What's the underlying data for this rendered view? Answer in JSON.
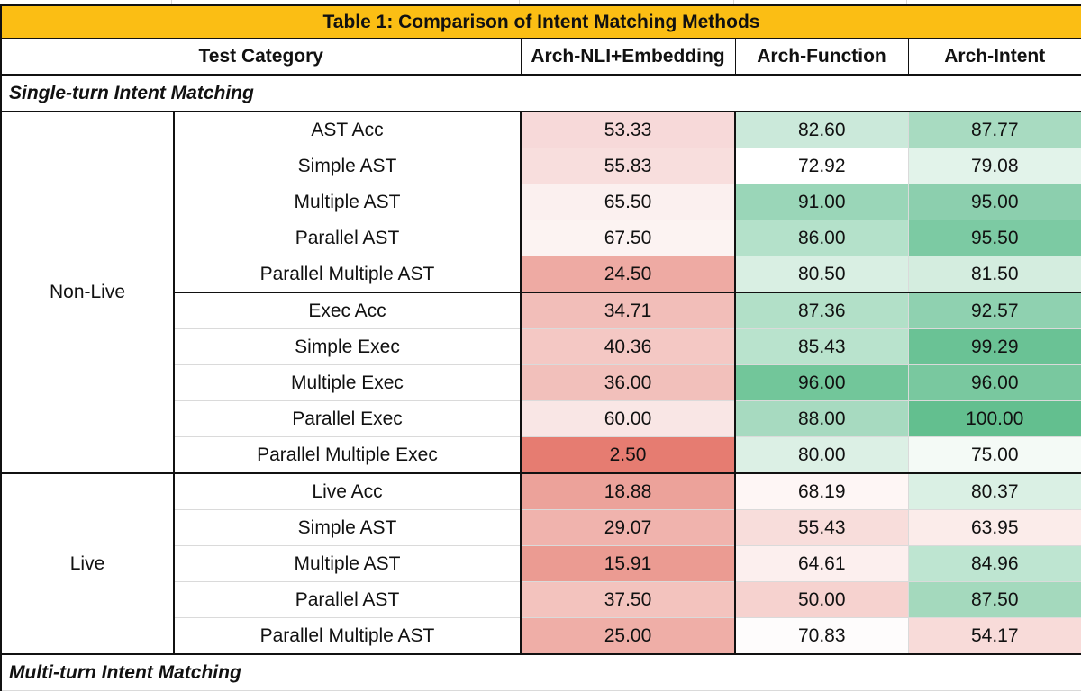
{
  "table": {
    "title": "Table 1: Comparison of Intent Matching Methods",
    "headers": [
      "Test Category",
      "Arch-NLI+Embedding",
      "Arch-Function",
      "Arch-Intent"
    ],
    "sections": [
      {
        "label": "Single-turn Intent Matching",
        "groups": [
          {
            "name": "Non-Live",
            "rows": [
              {
                "category": "AST Acc",
                "values": [
                  "53.33",
                  "82.60",
                  "87.77"
                ],
                "colors": [
                  "#f7d9d9",
                  "#cbe9da",
                  "#a8dbc1"
                ]
              },
              {
                "category": "Simple AST",
                "values": [
                  "55.83",
                  "72.92",
                  "79.08"
                ],
                "colors": [
                  "#f8dedd",
                  "#ffffff",
                  "#e2f3ea"
                ]
              },
              {
                "category": "Multiple AST",
                "values": [
                  "65.50",
                  "91.00",
                  "95.00"
                ],
                "colors": [
                  "#fbf0ef",
                  "#9ad6b8",
                  "#8ccfae"
                ]
              },
              {
                "category": "Parallel AST",
                "values": [
                  "67.50",
                  "86.00",
                  "95.50"
                ],
                "colors": [
                  "#fcf3f2",
                  "#b4e1ca",
                  "#7ccaa3"
                ]
              },
              {
                "category": "Parallel Multiple AST",
                "values": [
                  "24.50",
                  "80.50",
                  "81.50"
                ],
                "colors": [
                  "#eeaaa3",
                  "#d9efe3",
                  "#d4eddf"
                ]
              },
              {
                "category": "Exec Acc",
                "values": [
                  "34.71",
                  "87.36",
                  "92.57"
                ],
                "colors": [
                  "#f2beb9",
                  "#b2e0c8",
                  "#8fd1b0"
                ]
              },
              {
                "category": "Simple Exec",
                "values": [
                  "40.36",
                  "85.43",
                  "99.29"
                ],
                "colors": [
                  "#f4c8c4",
                  "#b9e3cd",
                  "#6ac295"
                ]
              },
              {
                "category": "Multiple Exec",
                "values": [
                  "36.00",
                  "96.00",
                  "96.00"
                ],
                "colors": [
                  "#f2c0bb",
                  "#72c69a",
                  "#79c89f"
                ]
              },
              {
                "category": "Parallel Exec",
                "values": [
                  "60.00",
                  "88.00",
                  "100.00"
                ],
                "colors": [
                  "#f9e6e5",
                  "#a7dac0",
                  "#63bf8f"
                ]
              },
              {
                "category": "Parallel Multiple Exec",
                "values": [
                  "2.50",
                  "80.00",
                  "75.00"
                ],
                "colors": [
                  "#e67c71",
                  "#dcf0e5",
                  "#f4faf6"
                ]
              }
            ]
          },
          {
            "name": "Live",
            "rows": [
              {
                "category": "Live Acc",
                "values": [
                  "18.88",
                  "68.19",
                  "80.37"
                ],
                "colors": [
                  "#eca29a",
                  "#fef6f5",
                  "#daf0e4"
                ]
              },
              {
                "category": "Simple AST",
                "values": [
                  "29.07",
                  "55.43",
                  "63.95"
                ],
                "colors": [
                  "#f0b3ad",
                  "#f8dddb",
                  "#fbecea"
                ]
              },
              {
                "category": "Multiple AST",
                "values": [
                  "15.91",
                  "64.61",
                  "84.96"
                ],
                "colors": [
                  "#eb9b92",
                  "#fcefee",
                  "#bee5d1"
                ]
              },
              {
                "category": "Parallel AST",
                "values": [
                  "37.50",
                  "50.00",
                  "87.50"
                ],
                "colors": [
                  "#f3c3be",
                  "#f6d2cf",
                  "#a4d9bd"
                ]
              },
              {
                "category": "Parallel Multiple AST",
                "values": [
                  "25.00",
                  "70.83",
                  "54.17"
                ],
                "colors": [
                  "#efaea7",
                  "#fefcfc",
                  "#f8dbd9"
                ]
              }
            ]
          }
        ]
      },
      {
        "label": "Multi-turn Intent Matching",
        "groups": []
      }
    ]
  }
}
